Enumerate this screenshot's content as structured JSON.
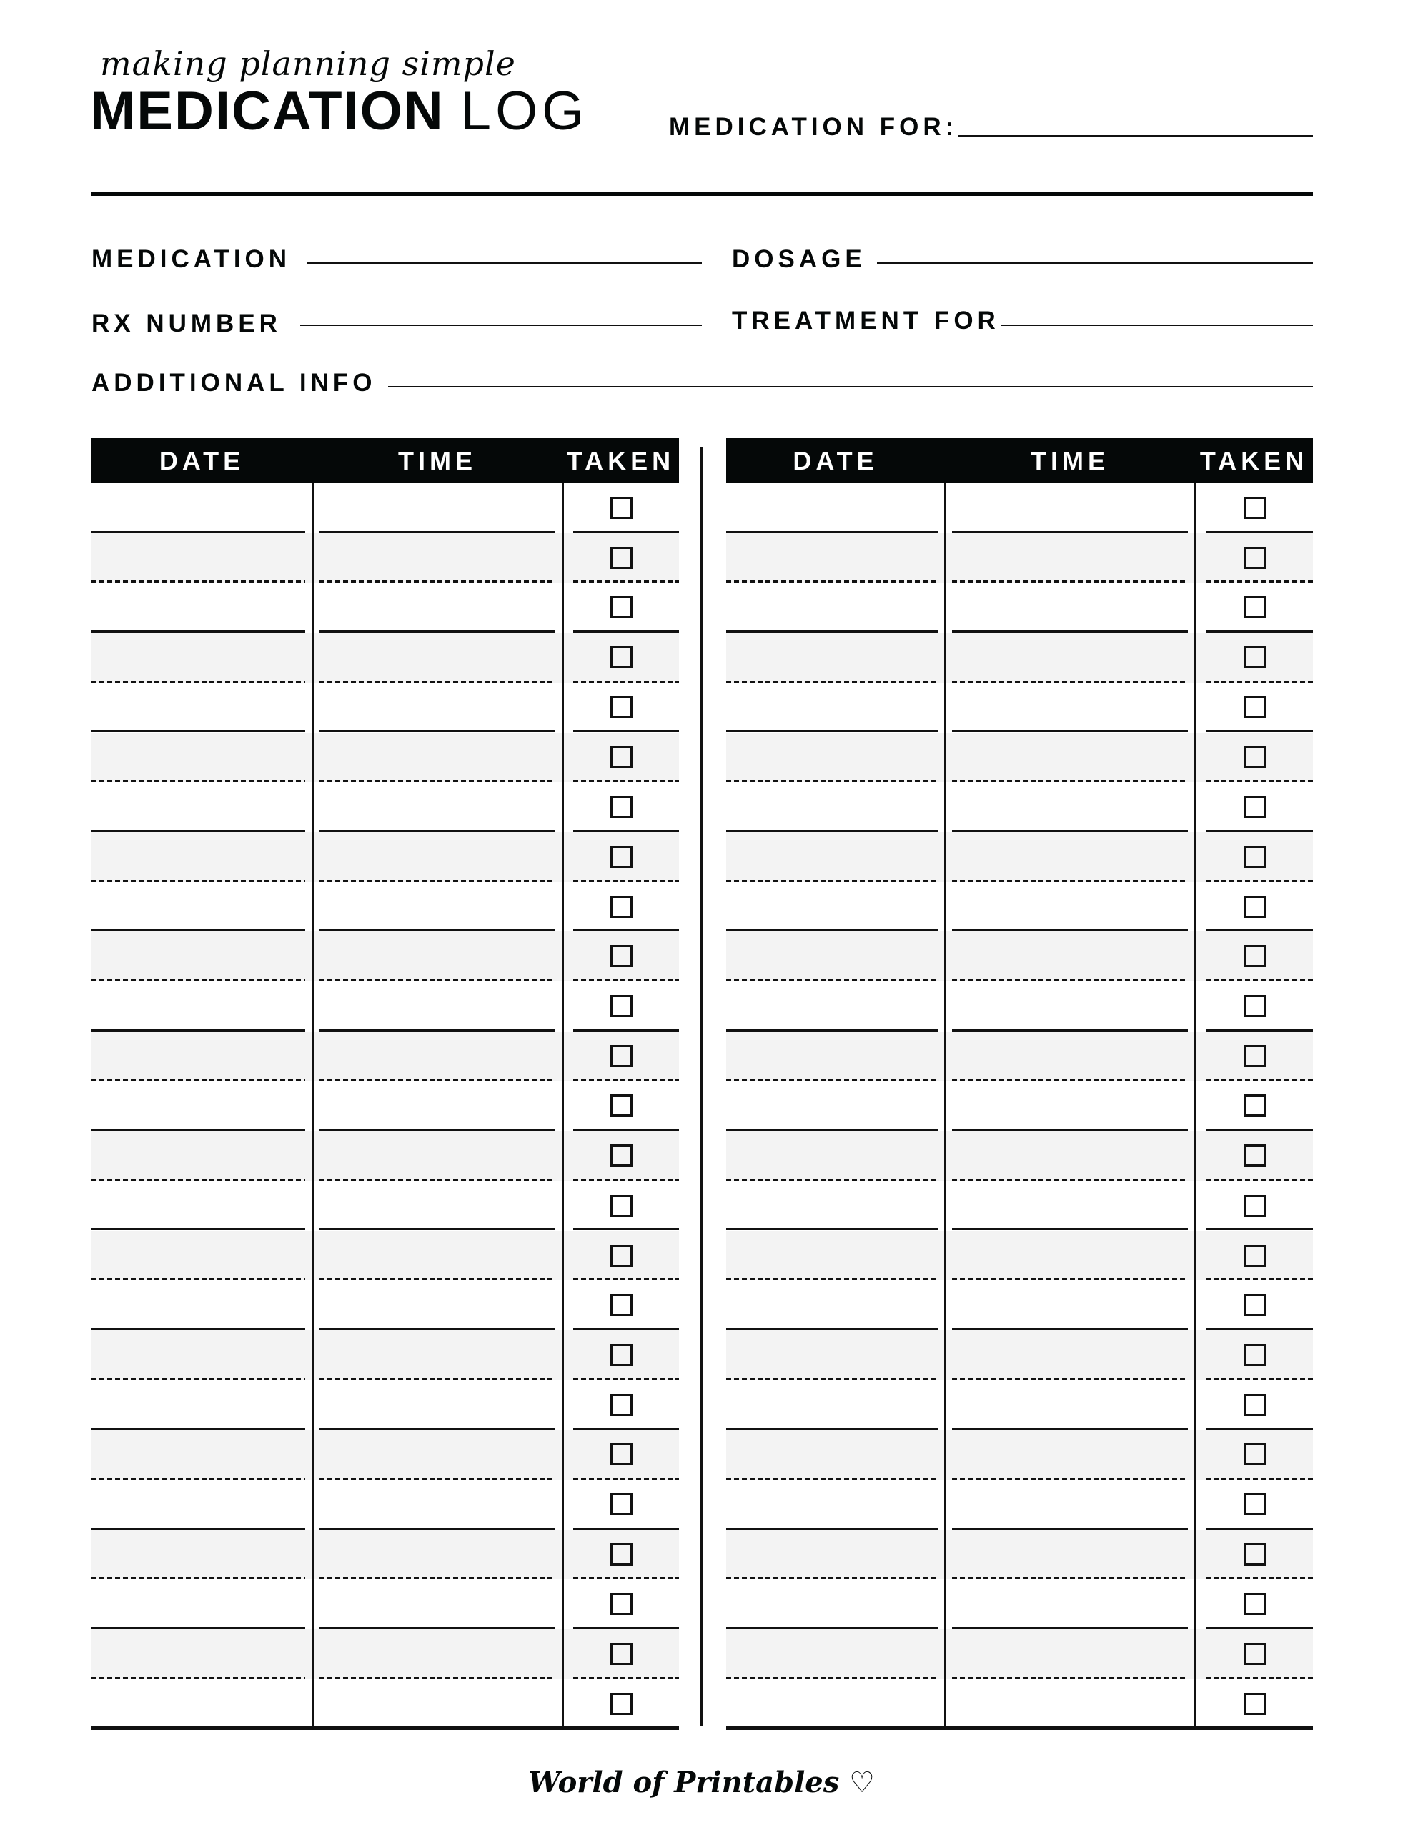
{
  "header": {
    "tagline": "making planning simple",
    "title_bold": "MEDICATION",
    "title_light": "LOG",
    "medication_for_label": "MEDICATION FOR:"
  },
  "fields": {
    "medication": "MEDICATION",
    "dosage": "DOSAGE",
    "rx_number": "RX NUMBER",
    "treatment_for": "TREATMENT FOR",
    "additional_info": "ADDITIONAL INFO"
  },
  "tables": [
    {
      "columns": [
        "DATE",
        "TIME",
        "TAKEN"
      ],
      "taken": [
        false,
        false,
        false,
        false,
        false,
        false,
        false,
        false,
        false,
        false,
        false,
        false,
        false,
        false,
        false,
        false,
        false,
        false,
        false,
        false,
        false,
        false,
        false,
        false,
        false
      ]
    },
    {
      "columns": [
        "DATE",
        "TIME",
        "TAKEN"
      ],
      "taken": [
        false,
        false,
        false,
        false,
        false,
        false,
        false,
        false,
        false,
        false,
        false,
        false,
        false,
        false,
        false,
        false,
        false,
        false,
        false,
        false,
        false,
        false,
        false,
        false,
        false
      ]
    }
  ],
  "footer": {
    "brand": "World of Printables",
    "brand_icon": "heart-icon"
  },
  "colors": {
    "ink": "#050808",
    "row_shade": "#f3f3f3"
  }
}
